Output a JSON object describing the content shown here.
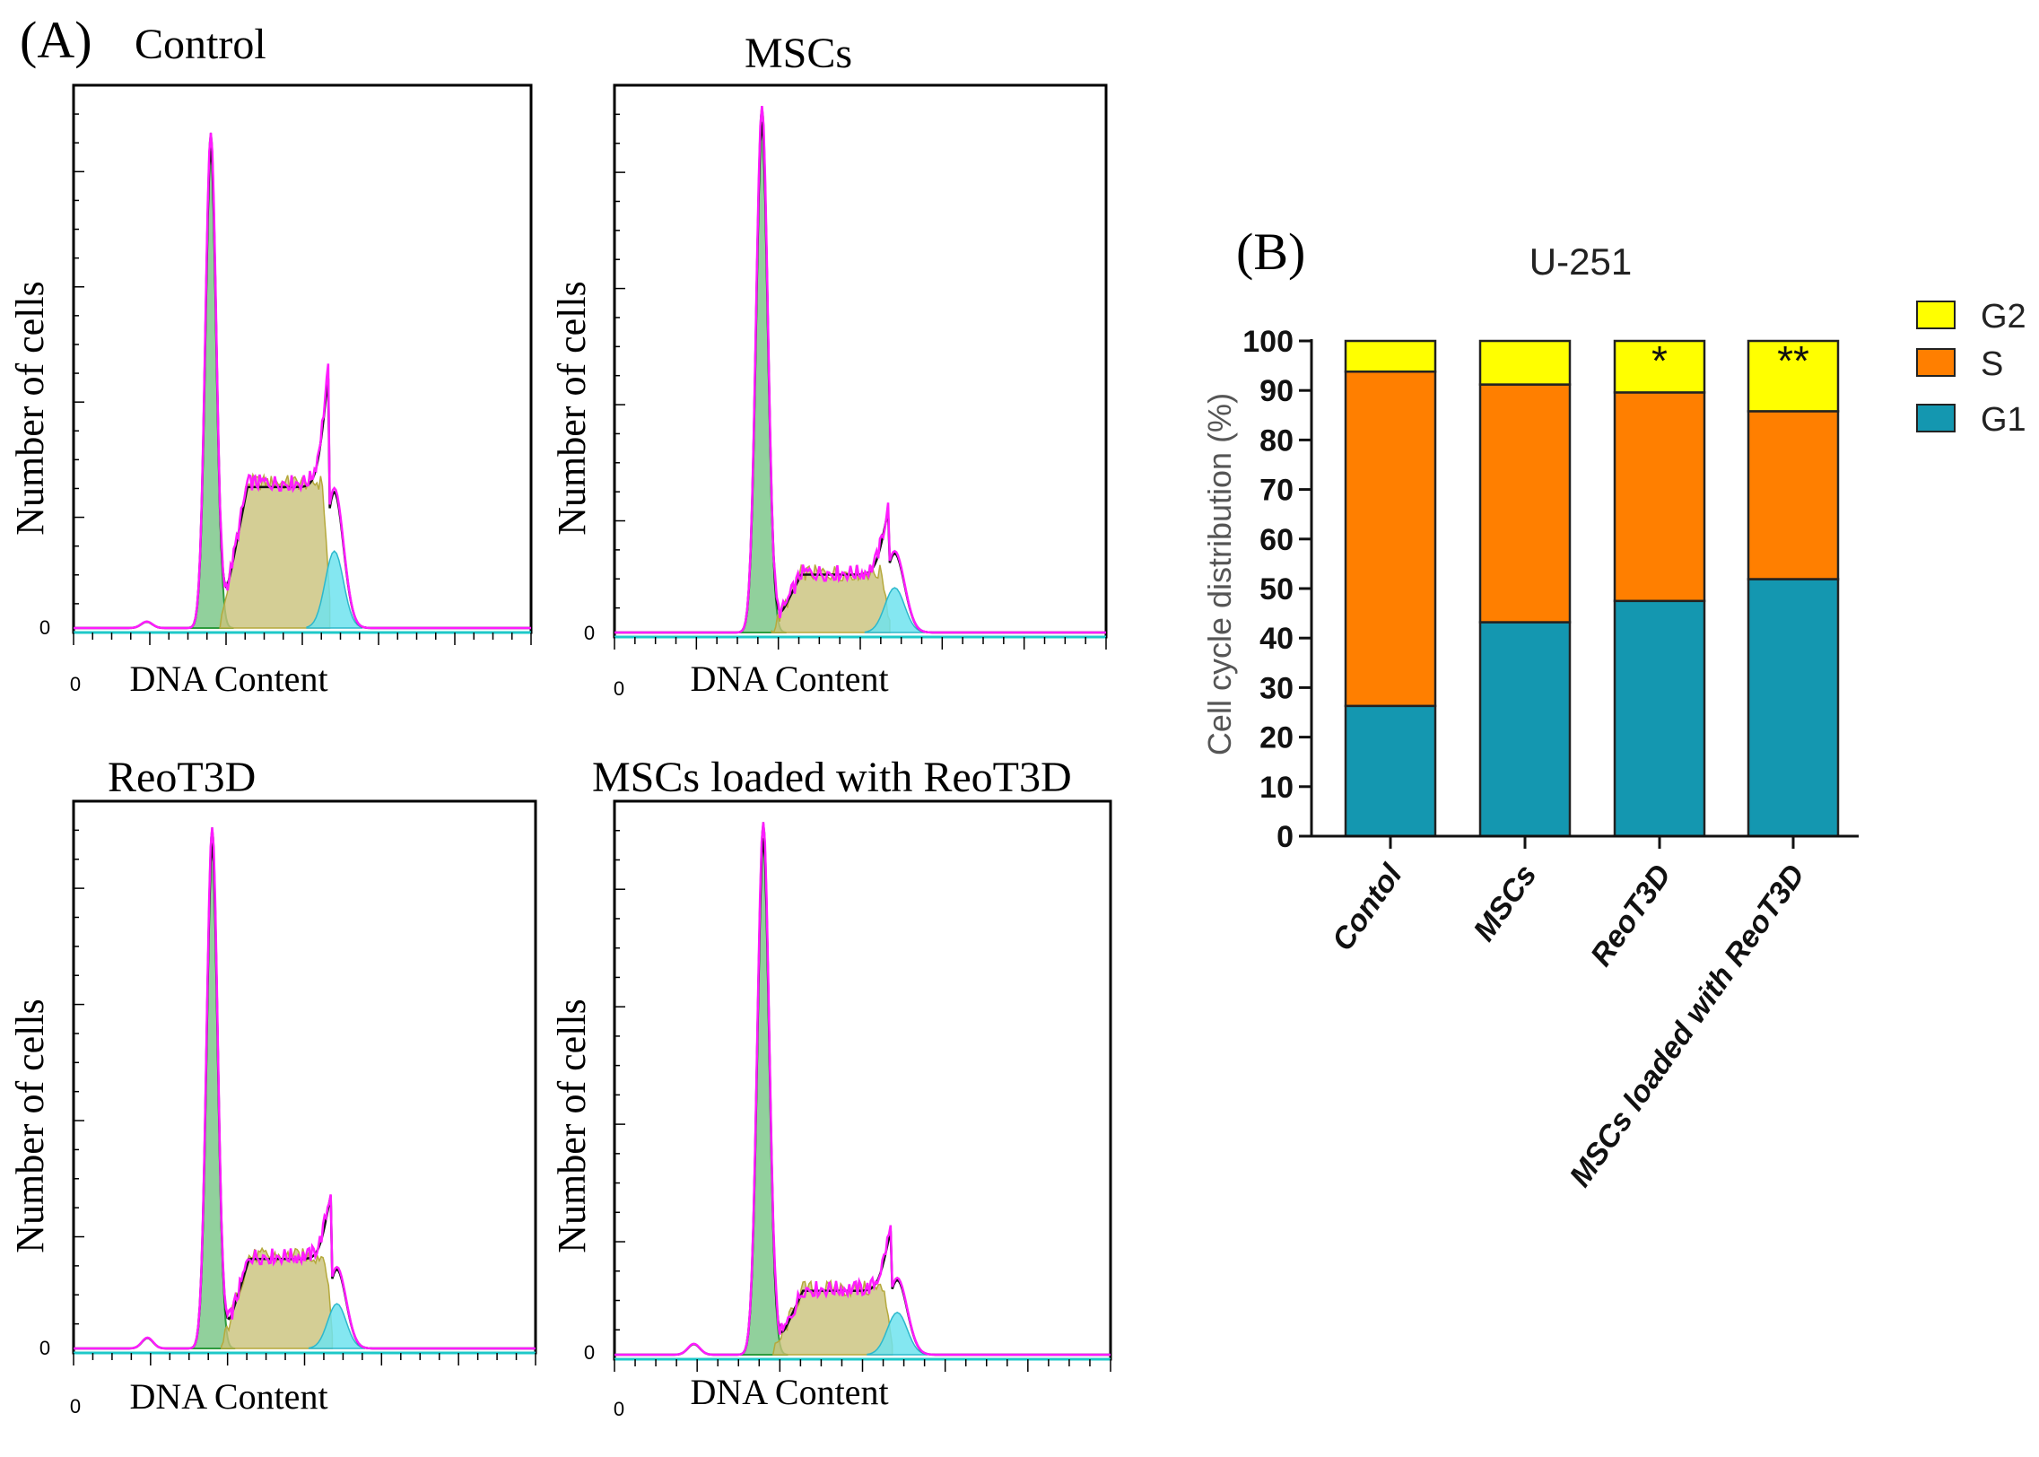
{
  "panel_a": {
    "label": "(A)",
    "histograms": [
      {
        "title": "Control",
        "ylabel": "Number of cells",
        "xlabel": "DNA Content",
        "x_origin": "0",
        "y_origin": "0",
        "shape": {
          "g1_peak": 0.92,
          "s_level": 0.27,
          "g2_peak": 0.26,
          "bump": 0.012
        }
      },
      {
        "title": "MSCs",
        "ylabel": "Number of cells",
        "xlabel": "DNA Content",
        "x_origin": "0",
        "y_origin": "0",
        "shape": {
          "g1_peak": 0.97,
          "s_level": 0.11,
          "g2_peak": 0.15,
          "bump": 0.0
        }
      },
      {
        "title": "ReoT3D",
        "ylabel": "Number of cells",
        "xlabel": "DNA Content",
        "x_origin": "0",
        "y_origin": "0",
        "shape": {
          "g1_peak": 0.96,
          "s_level": 0.17,
          "g2_peak": 0.15,
          "bump": 0.02
        }
      },
      {
        "title": "MSCs loaded with ReoT3D",
        "ylabel": "Number of cells",
        "xlabel": "DNA Content",
        "x_origin": "0",
        "y_origin": "0",
        "shape": {
          "g1_peak": 0.97,
          "s_level": 0.12,
          "g2_peak": 0.14,
          "bump": 0.02
        }
      }
    ]
  },
  "panel_b": {
    "label": "(B)"
  },
  "chart_data": {
    "type": "bar",
    "stacked": true,
    "title": "U-251",
    "ylabel": "Cell cycle distribution (%)",
    "xlabel": "",
    "ylim": [
      0,
      100
    ],
    "yticks": [
      0,
      10,
      20,
      30,
      40,
      50,
      60,
      70,
      80,
      90,
      100
    ],
    "categories": [
      "Contol",
      "MSCs",
      "ReoT3D",
      "MSCs loaded with ReoT3D"
    ],
    "series": [
      {
        "name": "G1",
        "color": "#1497b0",
        "values": [
          26.3,
          43.2,
          47.5,
          51.9
        ],
        "significance": [
          "",
          "*",
          "*",
          "**"
        ]
      },
      {
        "name": "S",
        "color": "#ff7f00",
        "values": [
          67.5,
          48.0,
          42.1,
          33.9
        ],
        "significance": [
          "",
          "",
          "",
          ""
        ]
      },
      {
        "name": "G2",
        "color": "#ffff00",
        "values": [
          6.2,
          8.8,
          10.4,
          14.2
        ],
        "significance": [
          "",
          "",
          "*",
          "**"
        ]
      }
    ],
    "legend": {
      "placement": "top-right",
      "order": [
        "G2",
        "S",
        "G1"
      ]
    },
    "grid": false
  }
}
